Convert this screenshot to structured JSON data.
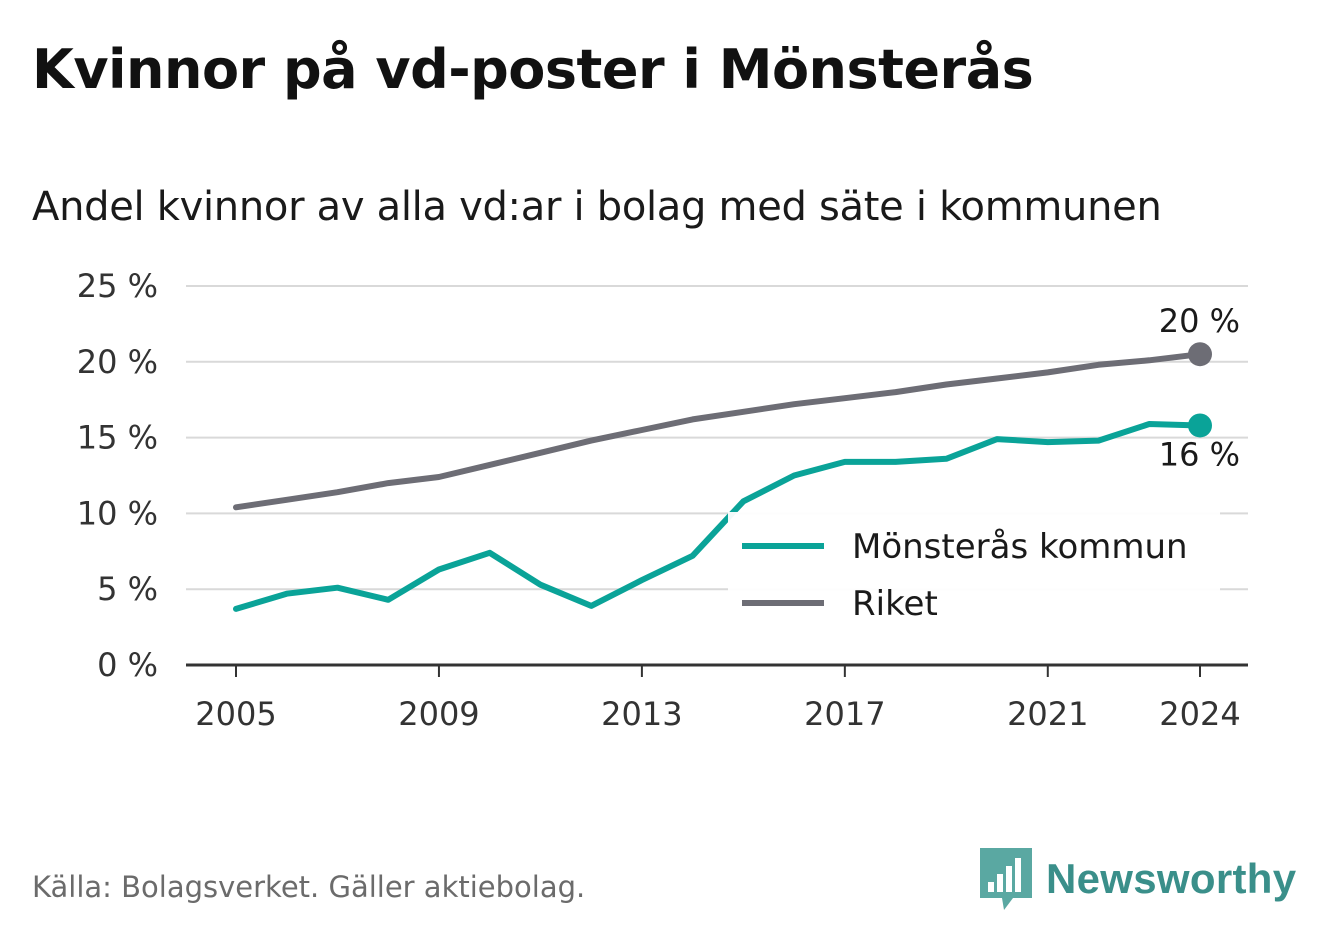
{
  "header": {
    "title": "Kvinnor på vd-poster i Mönsterås",
    "subtitle": "Andel kvinnor av alla vd:ar i bolag med säte i kommunen"
  },
  "footer": {
    "source": "Källa: Bolagsverket. Gäller aktiebolag.",
    "brand": "Newsworthy",
    "brand_icon": "bar-chart-speech-bubble-icon",
    "brand_color": "#3a8f8a"
  },
  "chart_data": {
    "type": "line",
    "title": "Kvinnor på vd-poster i Mönsterås",
    "subtitle": "Andel kvinnor av alla vd:ar i bolag med säte i kommunen",
    "xlabel": "",
    "ylabel": "",
    "xlim": [
      2005,
      2024
    ],
    "ylim": [
      0,
      25
    ],
    "x_ticks": [
      2005,
      2009,
      2013,
      2017,
      2021,
      2024
    ],
    "x_tick_labels": [
      "2005",
      "2009",
      "2013",
      "2017",
      "2021",
      "2024"
    ],
    "y_ticks": [
      0,
      5,
      10,
      15,
      20,
      25
    ],
    "y_tick_labels": [
      "0 %",
      "5 %",
      "10 %",
      "15 %",
      "20 %",
      "25 %"
    ],
    "grid": "horizontal",
    "legend_position": "bottom-right",
    "x": [
      2005,
      2006,
      2007,
      2008,
      2009,
      2010,
      2011,
      2012,
      2013,
      2014,
      2015,
      2016,
      2017,
      2018,
      2019,
      2020,
      2021,
      2022,
      2023,
      2024
    ],
    "series": [
      {
        "name": "Mönsterås kommun",
        "color": "#0aa398",
        "values": [
          3.7,
          4.7,
          5.1,
          4.3,
          6.3,
          7.4,
          5.3,
          3.9,
          5.6,
          7.2,
          10.8,
          12.5,
          13.4,
          13.4,
          13.6,
          14.9,
          14.7,
          14.8,
          15.9,
          15.8
        ],
        "end_label": "16 %"
      },
      {
        "name": "Riket",
        "color": "#6d6d75",
        "values": [
          10.4,
          10.9,
          11.4,
          12.0,
          12.4,
          13.2,
          14.0,
          14.8,
          15.5,
          16.2,
          16.7,
          17.2,
          17.6,
          18.0,
          18.5,
          18.9,
          19.3,
          19.8,
          20.1,
          20.5
        ],
        "end_label": "20 %"
      }
    ]
  }
}
